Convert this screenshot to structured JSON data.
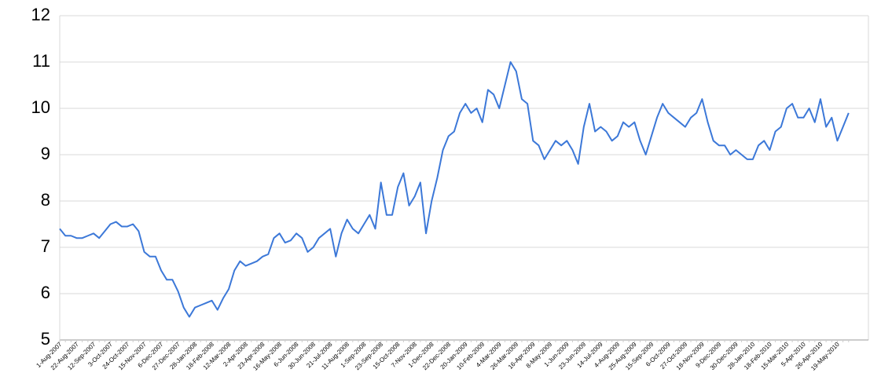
{
  "chart_data": {
    "type": "line",
    "categories": [
      "1-Aug-2007",
      null,
      null,
      "22-Aug-2007",
      null,
      null,
      "12-Sep-2007",
      null,
      null,
      "3-Oct-2007",
      null,
      null,
      "24-Oct-2007",
      null,
      null,
      "15-Nov-2007",
      null,
      null,
      "6-Dec-2007",
      null,
      null,
      "27-Dec-2007",
      null,
      null,
      "28-Jan-2008",
      null,
      null,
      "18-Feb-2008",
      null,
      null,
      "12-Mar-2008",
      null,
      null,
      "2-Apr-2008",
      null,
      null,
      "23-Apr-2008",
      null,
      null,
      "16-May-2008",
      null,
      null,
      "6-Jun-2008",
      null,
      null,
      "30-Jun-2008",
      null,
      null,
      "21-Jul-2008",
      null,
      null,
      "11-Aug-2008",
      null,
      null,
      "1-Sep-2008",
      null,
      null,
      "23-Sep-2008",
      null,
      null,
      "15-Oct-2008",
      null,
      null,
      "7-Nov-2008",
      null,
      null,
      "1-Dec-2008",
      null,
      null,
      "22-Dec-2008",
      null,
      null,
      "20-Jan-2009",
      null,
      null,
      "10-Feb-2009",
      null,
      null,
      "4-Mar-2009",
      null,
      null,
      "26-Mar-2009",
      null,
      null,
      "16-Apr-2009",
      null,
      null,
      "8-May-2009",
      null,
      null,
      "1-Jun-2009",
      null,
      null,
      "23-Jun-2009",
      null,
      null,
      "14-Jul-2009",
      null,
      null,
      "4-Aug-2009",
      null,
      null,
      "25-Aug-2009",
      null,
      null,
      "15-Sep-2009",
      null,
      null,
      "6-Oct-2009",
      null,
      null,
      "27-Oct-2009",
      null,
      null,
      "18-Nov-2009",
      null,
      null,
      "9-Dec-2009",
      null,
      null,
      "30-Dec-2009",
      null,
      null,
      "28-Jan-2010",
      null,
      null,
      "18-Feb-2010",
      null,
      null,
      "15-Mar-2010",
      null,
      null,
      "5-Apr-2010",
      null,
      null,
      "26-Apr-2010",
      null,
      null,
      "19-May-2010",
      null,
      null
    ],
    "series": [
      {
        "color": "#3c78d8",
        "values": [
          7.4,
          7.25,
          7.25,
          7.2,
          7.2,
          7.25,
          7.3,
          7.2,
          7.35,
          7.5,
          7.55,
          7.45,
          7.45,
          7.5,
          7.35,
          6.9,
          6.8,
          6.8,
          6.5,
          6.3,
          6.3,
          6.05,
          5.7,
          5.5,
          5.7,
          5.75,
          5.8,
          5.85,
          5.65,
          5.9,
          6.1,
          6.5,
          6.7,
          6.6,
          6.65,
          6.7,
          6.8,
          6.85,
          7.2,
          7.3,
          7.1,
          7.15,
          7.3,
          7.2,
          6.9,
          7.0,
          7.2,
          7.3,
          7.4,
          6.8,
          7.3,
          7.6,
          7.4,
          7.3,
          7.5,
          7.7,
          7.4,
          8.4,
          7.7,
          7.7,
          8.3,
          8.6,
          7.9,
          8.1,
          8.4,
          7.3,
          8.0,
          8.5,
          9.1,
          9.4,
          9.5,
          9.9,
          10.1,
          9.9,
          10.0,
          9.7,
          10.4,
          10.3,
          10.0,
          10.5,
          11.0,
          10.8,
          10.2,
          10.1,
          9.3,
          9.2,
          8.9,
          9.1,
          9.3,
          9.2,
          9.3,
          9.1,
          8.8,
          9.6,
          10.1,
          9.5,
          9.6,
          9.5,
          9.3,
          9.4,
          9.7,
          9.6,
          9.7,
          9.3,
          9.0,
          9.4,
          9.8,
          10.1,
          9.9,
          9.8,
          9.7,
          9.6,
          9.8,
          9.9,
          10.2,
          9.7,
          9.3,
          9.2,
          9.2,
          9.0,
          9.1,
          9.0,
          8.9,
          8.9,
          9.2,
          9.3,
          9.1,
          9.5,
          9.6,
          10.0,
          10.1,
          9.8,
          9.8,
          10.0,
          9.7,
          10.2,
          9.6,
          9.8,
          9.3,
          9.6,
          9.9
        ]
      }
    ],
    "ylim": [
      5,
      12
    ],
    "yticks": [
      5,
      6,
      7,
      8,
      9,
      10,
      11,
      12
    ],
    "grid": true
  }
}
